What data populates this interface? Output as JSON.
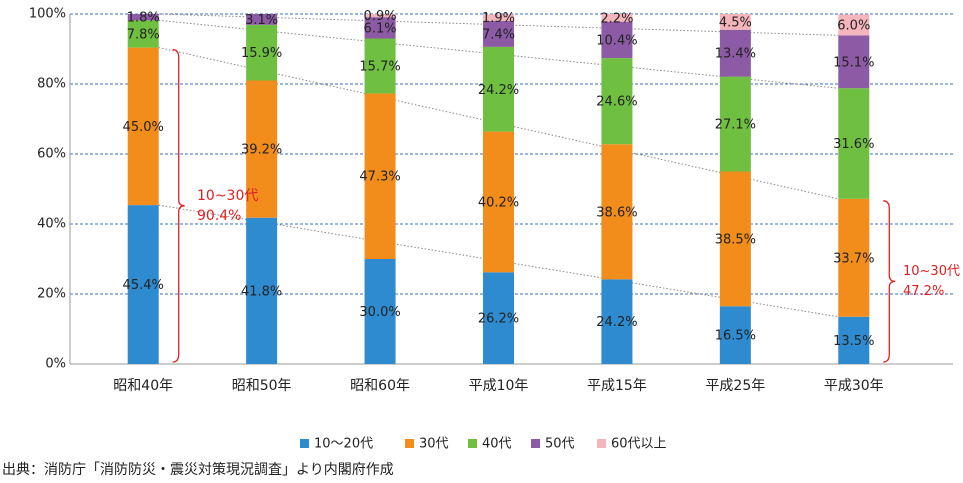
{
  "chart_data": {
    "type": "stacked-bar",
    "categories": [
      "昭和40年",
      "昭和50年",
      "昭和60年",
      "平成10年",
      "平成15年",
      "平成25年",
      "平成30年"
    ],
    "series": [
      {
        "name": "10～20代",
        "color": "#2e8bcf",
        "values": [
          45.4,
          41.8,
          30.0,
          26.2,
          24.2,
          16.5,
          13.5
        ],
        "value_labels": [
          "45.4%",
          "41.8%",
          "30.0%",
          "26.2%",
          "24.2%",
          "16.5%",
          "13.5%"
        ]
      },
      {
        "name": "30代",
        "color": "#f28c1a",
        "values": [
          45.0,
          39.2,
          47.3,
          40.2,
          38.6,
          38.5,
          33.7
        ],
        "value_labels": [
          "45.0%",
          "39.2%",
          "47.3%",
          "40.2%",
          "38.6%",
          "38.5%",
          "33.7%"
        ]
      },
      {
        "name": "40代",
        "color": "#6fbf40",
        "values": [
          7.8,
          15.9,
          15.7,
          24.2,
          24.6,
          27.1,
          31.6
        ],
        "value_labels": [
          "7.8%",
          "15.9%",
          "15.7%",
          "24.2%",
          "24.6%",
          "27.1%",
          "31.6%"
        ]
      },
      {
        "name": "50代",
        "color": "#8d5aa5",
        "values": [
          1.8,
          3.1,
          6.1,
          7.4,
          10.4,
          13.4,
          15.1
        ],
        "value_labels": [
          "1.8%",
          "3.1%",
          "6.1%",
          "7.4%",
          "10.4%",
          "13.4%",
          "15.1%"
        ]
      },
      {
        "name": "60代以上",
        "color": "#f4b5bb",
        "values": [
          null,
          null,
          0.9,
          1.9,
          2.2,
          4.5,
          6.0
        ],
        "value_labels": [
          null,
          null,
          "0.9%",
          "1.9%",
          "2.2%",
          "4.5%",
          "6.0%"
        ]
      }
    ],
    "ylim": [
      0,
      100
    ],
    "yticks": [
      {
        "value": 0,
        "label": "0%"
      },
      {
        "value": 20,
        "label": "20%"
      },
      {
        "value": 40,
        "label": "40%"
      },
      {
        "value": 60,
        "label": "60%"
      },
      {
        "value": 80,
        "label": "80%"
      },
      {
        "value": 100,
        "label": "100%"
      }
    ],
    "grid": true,
    "legend": "bottom",
    "annotations": [
      {
        "label": "10~30代",
        "value": "90.4%"
      },
      {
        "label": "10~30代",
        "value": "47.2%"
      }
    ],
    "source": "出典：消防庁「消防防災・震災対策現況調査」より内閣府作成"
  }
}
